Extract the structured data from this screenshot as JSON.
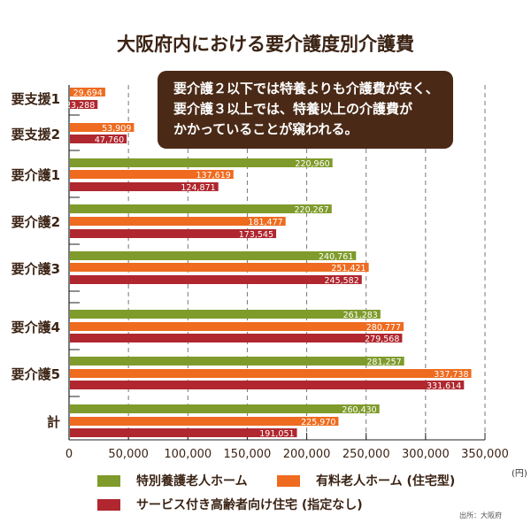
{
  "title": "大阪府内における要介護度別介護費",
  "callout": [
    "要介護２以下では特養よりも介護費が安く、",
    "要介護３以上では、特養以上の介護費が",
    "かかっていることが窺われる。"
  ],
  "unit": "(円)",
  "source": "出所：大阪府",
  "chart_data": {
    "type": "bar",
    "orientation": "horizontal",
    "title": "大阪府内における要介護度別介護費",
    "categories": [
      "要支援1",
      "要支援2",
      "要介護1",
      "要介護2",
      "要介護3",
      "要介護4",
      "要介護5",
      "計"
    ],
    "series": [
      {
        "name": "特別養護老人ホーム",
        "color": "#7f9b2c",
        "values": [
          null,
          null,
          220960,
          220267,
          240761,
          261283,
          281257,
          260430
        ],
        "labels": [
          "",
          "",
          "220,960",
          "220,267",
          "240,761",
          "261,283",
          "281,257",
          "260,430"
        ]
      },
      {
        "name": "有料老人ホーム (住宅型)",
        "color": "#ee6b1f",
        "values": [
          29694,
          53909,
          137619,
          181477,
          251421,
          280777,
          337738,
          225970
        ],
        "labels": [
          "29,694",
          "53,909",
          "137,619",
          "181,477",
          "251,421",
          "280,777",
          "337,738",
          "225,970"
        ]
      },
      {
        "name": "サービス付き高齢者向け住宅 (指定なし)",
        "color": "#b0272f",
        "values": [
          23288,
          47760,
          124871,
          173545,
          245582,
          279568,
          331614,
          191051
        ],
        "labels": [
          "23,288",
          "47,760",
          "124,871",
          "173,545",
          "245,582",
          "279,568",
          "331,614",
          "191,051"
        ]
      }
    ],
    "xlim": [
      0,
      350000
    ],
    "xticks": [
      0,
      50000,
      100000,
      150000,
      200000,
      250000,
      300000,
      350000
    ],
    "xtick_labels": [
      "0",
      "50,000",
      "100,000",
      "150,000",
      "200,000",
      "250,000",
      "300,000",
      "350,000"
    ],
    "xlabel": "(円)",
    "grid": "vertical dashed",
    "legend": "bottom"
  }
}
